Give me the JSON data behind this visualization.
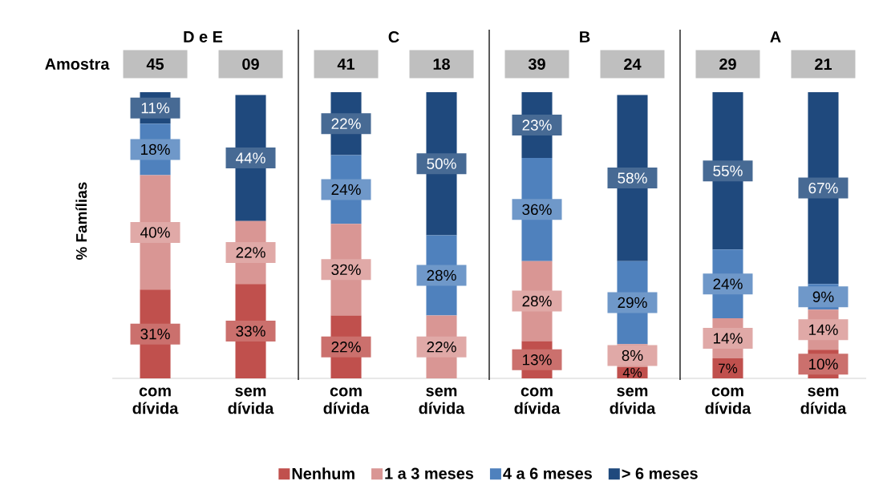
{
  "chart_data": {
    "type": "bar",
    "stacked": true,
    "ylabel": "% Famílias",
    "legend": "bottom",
    "categories": [
      "com dívida",
      "sem dívida",
      "com dívida",
      "sem dívida",
      "com dívida",
      "sem dívida",
      "com dívida",
      "sem dívida"
    ],
    "annotations": [
      "Amostra",
      "45",
      "09",
      "41",
      "18",
      "39",
      "24",
      "29",
      "21",
      "D e E",
      "C",
      "B",
      "A"
    ],
    "series": [
      {
        "name": "Nenhum",
        "color": "#c0504d",
        "values": [
          31,
          33,
          22,
          0,
          13,
          4,
          7,
          10
        ],
        "value_labels": [
          "31%",
          "33%",
          "22%",
          null,
          "13%",
          "4%",
          "7%",
          "10%"
        ]
      },
      {
        "name": "1 a 3 meses",
        "color": "#d99694",
        "values": [
          40,
          22,
          32,
          22,
          28,
          8,
          14,
          14
        ],
        "value_labels": [
          "40%",
          "22%",
          "32%",
          "22%",
          "28%",
          "8%",
          "14%",
          "14%"
        ]
      },
      {
        "name": "4 a 6 meses",
        "color": "#4f81bd",
        "values": [
          18,
          0,
          24,
          28,
          36,
          29,
          24,
          9
        ],
        "value_labels": [
          "18%",
          null,
          "24%",
          "28%",
          "36%",
          "29%",
          "24%",
          "9%"
        ]
      },
      {
        "name": "> 6 meses",
        "color": "#1f497d",
        "values": [
          11,
          44,
          22,
          50,
          23,
          58,
          55,
          67
        ],
        "value_labels": [
          "11%",
          "44%",
          "22%",
          "50%",
          "23%",
          "58%",
          "55%",
          "67%"
        ]
      }
    ]
  }
}
